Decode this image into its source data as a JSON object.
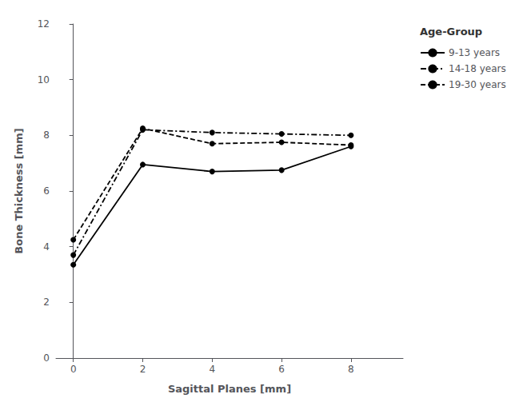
{
  "chart_data": {
    "type": "line",
    "x": [
      0,
      2,
      4,
      6,
      8
    ],
    "series": [
      {
        "name": "9-13 years",
        "color": "#000000",
        "marker": "circle",
        "line_style": "solid",
        "values": [
          3.35,
          6.95,
          6.7,
          6.75,
          7.6
        ]
      },
      {
        "name": "14-18 years",
        "color": "#000000",
        "marker": "circle",
        "line_style": "dashdot",
        "values": [
          3.7,
          8.2,
          8.1,
          8.05,
          8.0
        ]
      },
      {
        "name": "19-30 years",
        "color": "#000000",
        "marker": "circle",
        "line_style": "dashed",
        "values": [
          4.25,
          8.25,
          7.7,
          7.75,
          7.65
        ]
      }
    ],
    "xlabel": "Sagittal Planes [mm]",
    "ylabel": "Bone Thickness [mm]",
    "legend_title": "Age-Group",
    "legend": "right",
    "xlim": [
      -0.5,
      9.5
    ],
    "xticks": [
      0,
      2,
      4,
      6,
      8
    ],
    "ylim": [
      0,
      12
    ],
    "yticks": [
      0,
      2,
      4,
      6,
      8,
      10,
      12
    ],
    "grid": false
  }
}
